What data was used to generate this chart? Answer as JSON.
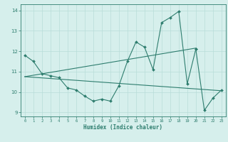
{
  "xlabel": "Humidex (Indice chaleur)",
  "x_values": [
    0,
    1,
    2,
    3,
    4,
    5,
    6,
    7,
    8,
    9,
    10,
    11,
    12,
    13,
    14,
    15,
    16,
    17,
    18,
    19,
    20,
    21,
    22,
    23
  ],
  "line_main": [
    11.8,
    11.5,
    10.9,
    10.8,
    10.7,
    10.2,
    10.1,
    9.8,
    9.55,
    9.65,
    9.55,
    10.3,
    11.5,
    12.45,
    12.2,
    11.1,
    13.4,
    13.65,
    13.95,
    10.4,
    12.1,
    null,
    null,
    null
  ],
  "line_ext": [
    null,
    null,
    null,
    null,
    null,
    null,
    null,
    null,
    null,
    null,
    null,
    null,
    null,
    null,
    null,
    null,
    null,
    null,
    null,
    null,
    12.1,
    9.1,
    9.7,
    10.1
  ],
  "line_trend_up": [
    10.75,
    10.82,
    10.89,
    10.96,
    11.03,
    11.1,
    11.17,
    11.24,
    11.31,
    11.38,
    11.45,
    11.52,
    11.59,
    11.66,
    11.73,
    11.8,
    11.87,
    11.94,
    12.01,
    12.08,
    12.15,
    null,
    null,
    null
  ],
  "line_trend_down": [
    10.75,
    10.72,
    10.69,
    10.66,
    10.63,
    10.6,
    10.57,
    10.54,
    10.51,
    10.48,
    10.45,
    10.42,
    10.39,
    10.36,
    10.33,
    10.3,
    10.27,
    10.24,
    10.21,
    10.18,
    10.15,
    10.12,
    10.09,
    10.06
  ],
  "color": "#2e7d6e",
  "bg_color": "#d6efec",
  "grid_color": "#b8ddd9",
  "ylim": [
    8.8,
    14.3
  ],
  "xlim": [
    -0.5,
    23.5
  ],
  "yticks": [
    9,
    10,
    11,
    12,
    13,
    14
  ],
  "xticks": [
    0,
    1,
    2,
    3,
    4,
    5,
    6,
    7,
    8,
    9,
    10,
    11,
    12,
    13,
    14,
    15,
    16,
    17,
    18,
    19,
    20,
    21,
    22,
    23
  ]
}
